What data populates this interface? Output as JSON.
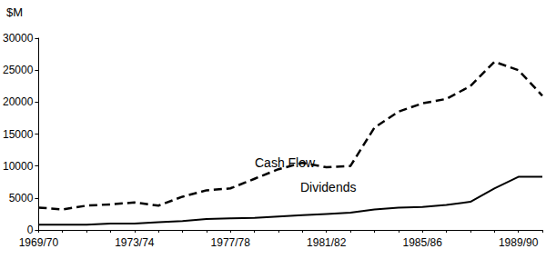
{
  "chart_data": {
    "type": "line",
    "y_label": "$M",
    "categories": [
      "1969/70",
      null,
      null,
      null,
      "1973/74",
      null,
      null,
      null,
      "1977/78",
      null,
      null,
      null,
      "1981/82",
      null,
      null,
      null,
      "1985/86",
      null,
      null,
      null,
      "1989/90",
      null
    ],
    "series": [
      {
        "name": "Cash Flow",
        "color": "#000000",
        "line_style": "dashed",
        "values": [
          3500,
          3200,
          3800,
          4000,
          4300,
          3800,
          5200,
          6200,
          6500,
          8000,
          9500,
          10500,
          9800,
          10000,
          16000,
          18500,
          19800,
          20500,
          22500,
          26300,
          25000,
          21000
        ]
      },
      {
        "name": "Dividends",
        "color": "#000000",
        "line_style": "solid",
        "values": [
          800,
          800,
          800,
          1000,
          1000,
          1200,
          1400,
          1700,
          1800,
          1900,
          2100,
          2300,
          2500,
          2700,
          3200,
          3500,
          3600,
          3900,
          4400,
          6500,
          8300,
          8300
        ]
      }
    ],
    "ylim": [
      0,
      30000
    ],
    "yticks": [
      0,
      5000,
      10000,
      15000,
      20000,
      25000,
      30000
    ],
    "grid": false,
    "marker": "none"
  }
}
